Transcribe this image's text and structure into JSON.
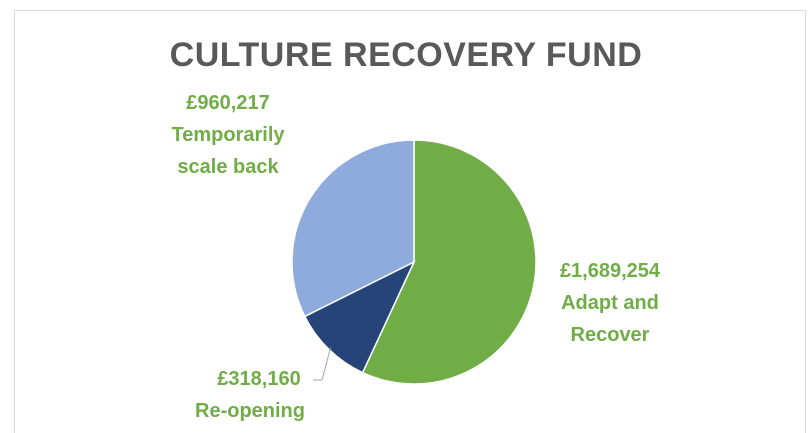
{
  "chart_data": {
    "type": "pie",
    "title": "CULTURE RECOVERY FUND",
    "slices": [
      {
        "value_label": "£1,689,254",
        "name_lines": [
          "Adapt and",
          "Recover"
        ],
        "value": 1689254,
        "color": "#70ad47"
      },
      {
        "value_label": "£318,160",
        "name_lines": [
          "Re-opening"
        ],
        "value": 318160,
        "color": "#264478"
      },
      {
        "value_label": "£960,217",
        "name_lines": [
          "Temporarily",
          "scale back"
        ],
        "value": 960217,
        "color": "#8faadc"
      }
    ],
    "label_color": "#70ad47",
    "title_color": "#595959"
  }
}
